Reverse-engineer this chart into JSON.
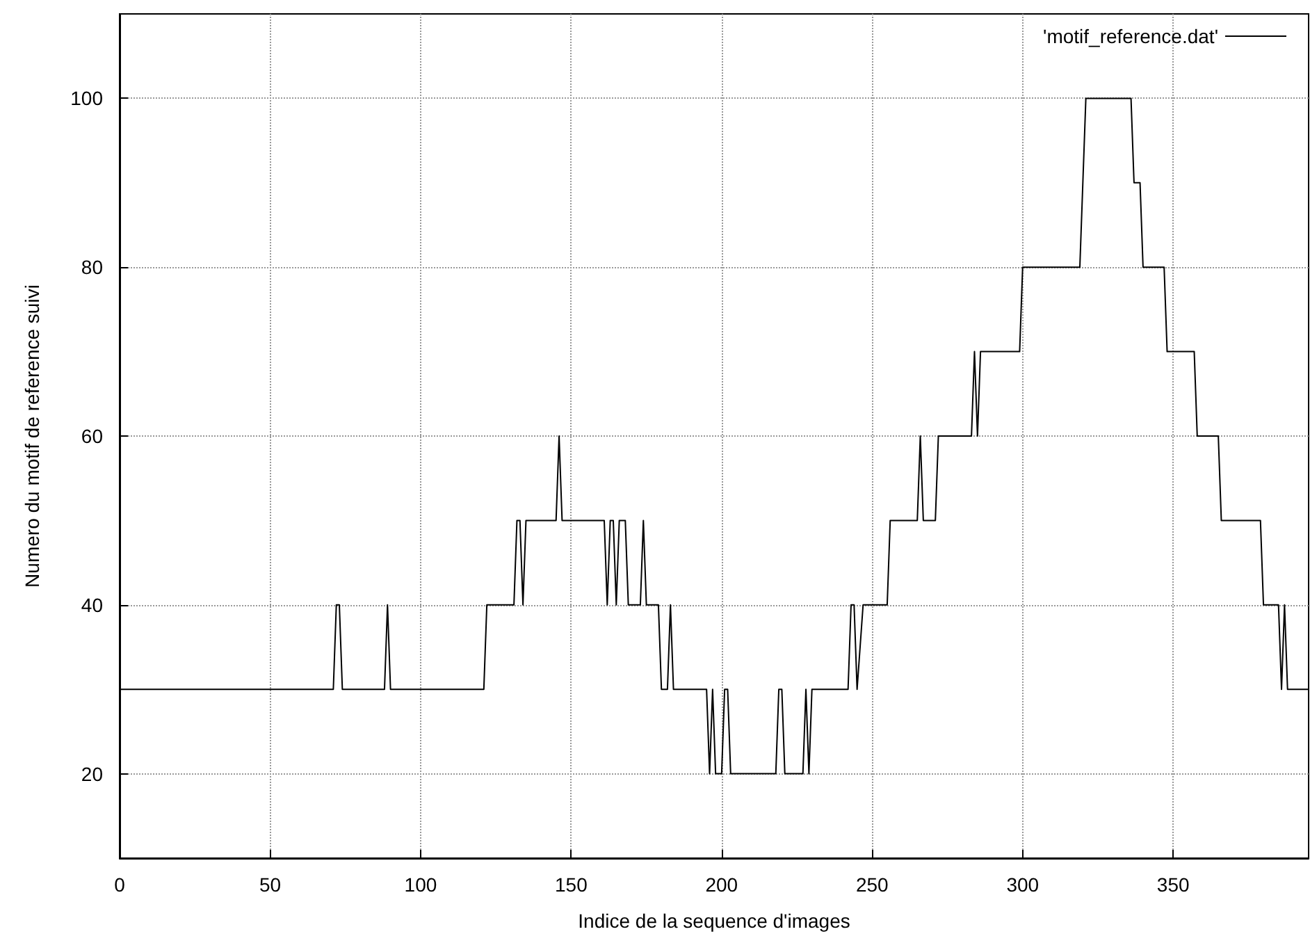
{
  "chart_data": {
    "type": "line",
    "xlabel": "Indice de la sequence d'images",
    "ylabel": "Numero du motif de reference suivi",
    "x": [
      0,
      71,
      72,
      73,
      74,
      88,
      89,
      90,
      121,
      122,
      131,
      132,
      133,
      134,
      135,
      145,
      146,
      147,
      161,
      162,
      163,
      164,
      165,
      166,
      168,
      169,
      173,
      174,
      175,
      179,
      180,
      182,
      183,
      184,
      195,
      196,
      197,
      198,
      200,
      201,
      202,
      203,
      218,
      219,
      220,
      221,
      227,
      228,
      229,
      230,
      242,
      243,
      244,
      245,
      247,
      255,
      256,
      265,
      266,
      267,
      271,
      272,
      283,
      284,
      285,
      286,
      299,
      300,
      319,
      321,
      336,
      337,
      339,
      340,
      347,
      348,
      357,
      358,
      365,
      366,
      379,
      380,
      385,
      386,
      387,
      388,
      395
    ],
    "series": [
      {
        "name": "'motif_reference.dat'",
        "color": "#000000",
        "values": [
          30,
          30,
          40,
          40,
          30,
          30,
          40,
          30,
          30,
          40,
          40,
          50,
          50,
          40,
          50,
          50,
          60,
          50,
          50,
          40,
          50,
          50,
          40,
          50,
          50,
          40,
          40,
          50,
          40,
          40,
          30,
          30,
          40,
          30,
          30,
          20,
          30,
          20,
          20,
          30,
          30,
          20,
          20,
          30,
          30,
          20,
          20,
          30,
          20,
          30,
          30,
          40,
          40,
          30,
          40,
          40,
          50,
          50,
          60,
          50,
          50,
          60,
          60,
          70,
          60,
          70,
          70,
          80,
          80,
          100,
          100,
          90,
          90,
          80,
          80,
          70,
          70,
          60,
          60,
          50,
          50,
          40,
          40,
          30,
          40,
          30,
          30
        ]
      }
    ],
    "xlim": [
      0,
      395
    ],
    "xticks": [
      0,
      50,
      100,
      150,
      200,
      250,
      300,
      350
    ],
    "ylim": [
      10,
      110
    ],
    "yticks": [
      20,
      40,
      60,
      80,
      100
    ],
    "grid": true,
    "legend": "top right",
    "marker": "none",
    "line_style": "solid"
  }
}
